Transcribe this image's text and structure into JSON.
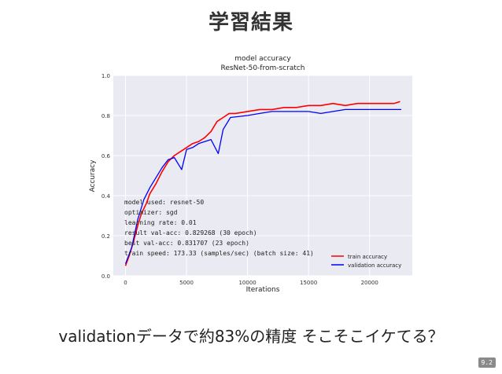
{
  "slide": {
    "title": "学習結果",
    "caption": "validationデータで約83%の精度 そこそこイケてる？",
    "page_number": "9.2"
  },
  "chart_data": {
    "type": "line",
    "title": "model accuracy",
    "subtitle": "ResNet-50-from-scratch",
    "xlabel": "Iterations",
    "ylabel": "Accuracy",
    "xlim": [
      -1000,
      23500
    ],
    "ylim": [
      0.0,
      1.0
    ],
    "xticks": [
      0,
      5000,
      10000,
      15000,
      20000
    ],
    "xtick_labels": [
      "0",
      "5000",
      "10000",
      "15000",
      "20000"
    ],
    "yticks": [
      0.0,
      0.2,
      0.4,
      0.6,
      0.8,
      1.0
    ],
    "ytick_labels": [
      "0.0",
      "0.2",
      "0.4",
      "0.6",
      "0.8",
      "1.0"
    ],
    "grid": true,
    "background": "#eaeaf2",
    "legend_position": "bottom-right",
    "series": [
      {
        "name": "train accuracy",
        "color": "#ff0000",
        "x": [
          0,
          300,
          700,
          1000,
          1300,
          1700,
          2000,
          2500,
          3000,
          3500,
          4000,
          4500,
          5000,
          5500,
          6000,
          6500,
          7000,
          7500,
          8000,
          8500,
          9000,
          10000,
          11000,
          12000,
          13000,
          14000,
          15000,
          16000,
          17000,
          18000,
          19000,
          20000,
          21000,
          22000,
          22500
        ],
        "y": [
          0.05,
          0.1,
          0.18,
          0.25,
          0.31,
          0.36,
          0.41,
          0.46,
          0.52,
          0.57,
          0.6,
          0.62,
          0.64,
          0.66,
          0.67,
          0.69,
          0.72,
          0.77,
          0.79,
          0.81,
          0.81,
          0.82,
          0.83,
          0.83,
          0.84,
          0.84,
          0.85,
          0.85,
          0.86,
          0.85,
          0.86,
          0.86,
          0.86,
          0.86,
          0.87
        ]
      },
      {
        "name": "validation accuracy",
        "color": "#0000ff",
        "x": [
          0,
          500,
          1000,
          1500,
          2000,
          3000,
          3500,
          4000,
          4600,
          5000,
          5500,
          6000,
          7000,
          7600,
          8000,
          8600,
          10000,
          11000,
          12000,
          13000,
          14000,
          15000,
          16000,
          17000,
          18000,
          19000,
          20000,
          21000,
          22000,
          22600
        ],
        "y": [
          0.06,
          0.14,
          0.28,
          0.38,
          0.44,
          0.54,
          0.58,
          0.59,
          0.53,
          0.63,
          0.64,
          0.66,
          0.68,
          0.61,
          0.73,
          0.79,
          0.8,
          0.81,
          0.82,
          0.82,
          0.82,
          0.82,
          0.81,
          0.82,
          0.83,
          0.83,
          0.83,
          0.83,
          0.83,
          0.83
        ]
      }
    ],
    "annotation_lines": [
      "model used:     resnet-50",
      "optimizer:      sgd",
      "learning rate:  0.01",
      "result val-acc: 0.829268 (30 epoch)",
      "best val-acc:   0.831707 (23 epoch)",
      "train speed:    173.33 (samples/sec) (batch size: 41)"
    ]
  }
}
